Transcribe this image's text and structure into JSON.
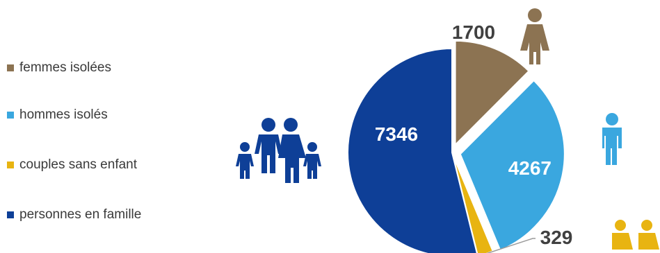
{
  "colors": {
    "femmes": "#8c7352",
    "hommes": "#3aa7df",
    "couples": "#e8b411",
    "familles": "#0e3f97",
    "label_dark": "#404040",
    "label_light": "#ffffff"
  },
  "icons": {
    "femmes": "woman-icon",
    "hommes": "man-icon",
    "couples": "couple-icon",
    "familles": "family-icon"
  },
  "chart_data": {
    "type": "pie",
    "categories": [
      "femmes isolées",
      "hommes isolés",
      "couples sans enfant",
      "personnes en famille"
    ],
    "values": [
      1700,
      4267,
      329,
      7346
    ],
    "data_labels": [
      "1700",
      "4267",
      "329",
      "7346"
    ],
    "title": "",
    "legend_position": "left"
  }
}
